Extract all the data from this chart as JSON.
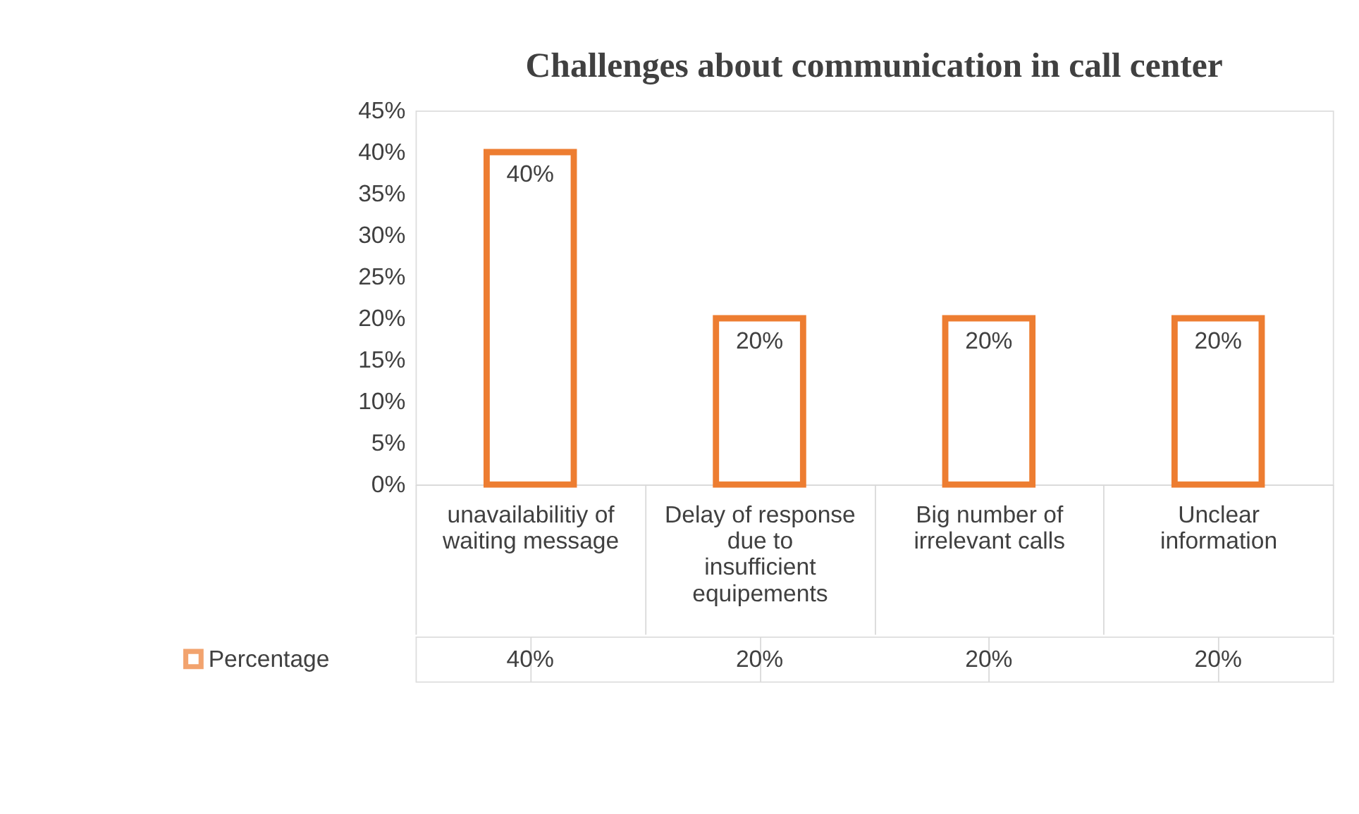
{
  "chart_data": {
    "type": "bar",
    "title": "Challenges about communication in call center",
    "categories": [
      "unavailabilitiy of waiting message",
      "Delay of response due to insufficient equipements",
      "Big number of irrelevant calls",
      "Unclear information"
    ],
    "series": [
      {
        "name": "Percentage",
        "color": "#ed7d31",
        "values": [
          40,
          20,
          20,
          20
        ],
        "value_labels": [
          "40%",
          "20%",
          "20%",
          "20%"
        ]
      }
    ],
    "ylim": [
      0,
      45
    ],
    "yticks": [
      {
        "value": 0,
        "label": "0%"
      },
      {
        "value": 5,
        "label": "5%"
      },
      {
        "value": 10,
        "label": "10%"
      },
      {
        "value": 15,
        "label": "15%"
      },
      {
        "value": 20,
        "label": "20%"
      },
      {
        "value": 25,
        "label": "25%"
      },
      {
        "value": 30,
        "label": "30%"
      },
      {
        "value": 35,
        "label": "35%"
      },
      {
        "value": 40,
        "label": "40%"
      },
      {
        "value": 45,
        "label": "45%"
      }
    ],
    "grid": false,
    "legend": "bottom left"
  }
}
